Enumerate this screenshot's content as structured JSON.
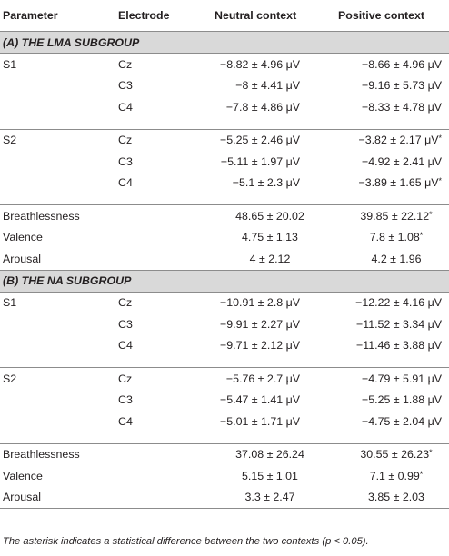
{
  "table": {
    "headers": [
      "Parameter",
      "Electrode",
      "Neutral context",
      "Positive context"
    ],
    "groups": [
      {
        "title": "(A) THE LMA SUBGROUP",
        "blocks": [
          {
            "type": "elec",
            "rows": [
              {
                "param": "S1",
                "elec": "Cz",
                "neutral": "−8.82 ± 4.96 μV",
                "positive": "−8.66 ± 4.96 μV",
                "pos_star": false
              },
              {
                "param": "",
                "elec": "C3",
                "neutral": "−8 ± 4.41 μV",
                "positive": "−9.16 ± 5.73 μV",
                "pos_star": false
              },
              {
                "param": "",
                "elec": "C4",
                "neutral": "−7.8 ± 4.86 μV",
                "positive": "−8.33 ± 4.78 μV",
                "pos_star": false
              }
            ]
          },
          {
            "type": "elec",
            "rows": [
              {
                "param": "S2",
                "elec": "Cz",
                "neutral": "−5.25 ± 2.46 μV",
                "positive": "−3.82 ± 2.17 μV",
                "pos_star": true
              },
              {
                "param": "",
                "elec": "C3",
                "neutral": "−5.11 ± 1.97 μV",
                "positive": "−4.92 ± 2.41 μV",
                "pos_star": false
              },
              {
                "param": "",
                "elec": "C4",
                "neutral": "−5.1 ± 2.3 μV",
                "positive": "−3.89 ± 1.65 μV",
                "pos_star": true
              }
            ]
          },
          {
            "type": "subj",
            "rows": [
              {
                "param": "Breathlessness",
                "elec": "",
                "neutral": "48.65 ± 20.02",
                "positive": "39.85 ± 22.12",
                "pos_star": true
              },
              {
                "param": "Valence",
                "elec": "",
                "neutral": "4.75 ± 1.13",
                "positive": "7.8 ± 1.08",
                "pos_star": true
              },
              {
                "param": "Arousal",
                "elec": "",
                "neutral": "4 ± 2.12",
                "positive": "4.2 ± 1.96",
                "pos_star": false
              }
            ]
          }
        ]
      },
      {
        "title": "(B) THE NA SUBGROUP",
        "blocks": [
          {
            "type": "elec",
            "rows": [
              {
                "param": "S1",
                "elec": "Cz",
                "neutral": "−10.91 ± 2.8 μV",
                "positive": "−12.22 ± 4.16 μV",
                "pos_star": false
              },
              {
                "param": "",
                "elec": "C3",
                "neutral": "−9.91 ± 2.27 μV",
                "positive": "−11.52 ± 3.34 μV",
                "pos_star": false
              },
              {
                "param": "",
                "elec": "C4",
                "neutral": "−9.71 ± 2.12 μV",
                "positive": "−11.46 ± 3.88 μV",
                "pos_star": false
              }
            ]
          },
          {
            "type": "elec",
            "rows": [
              {
                "param": "S2",
                "elec": "Cz",
                "neutral": "−5.76 ± 2.7 μV",
                "positive": "−4.79 ± 5.91 μV",
                "pos_star": false
              },
              {
                "param": "",
                "elec": "C3",
                "neutral": "−5.47 ± 1.41 μV",
                "positive": "−5.25 ± 1.88 μV",
                "pos_star": false
              },
              {
                "param": "",
                "elec": "C4",
                "neutral": "−5.01 ± 1.71 μV",
                "positive": "−4.75 ± 2.04 μV",
                "pos_star": false
              }
            ]
          },
          {
            "type": "subj",
            "rows": [
              {
                "param": "Breathlessness",
                "elec": "",
                "neutral": "37.08 ± 26.24",
                "positive": "30.55 ± 26.23",
                "pos_star": true
              },
              {
                "param": "Valence",
                "elec": "",
                "neutral": "5.15 ± 1.01",
                "positive": "7.1 ± 0.99",
                "pos_star": true
              },
              {
                "param": "Arousal",
                "elec": "",
                "neutral": "3.3 ± 2.47",
                "positive": "3.85 ± 2.03",
                "pos_star": false
              }
            ]
          }
        ]
      }
    ],
    "star": "*"
  },
  "footnote": "The asterisk indicates a statistical difference between the two contexts (p < 0.05).",
  "colors": {
    "band": "#d9d9d9",
    "rule": "#8c8c8c",
    "text": "#231f20"
  }
}
